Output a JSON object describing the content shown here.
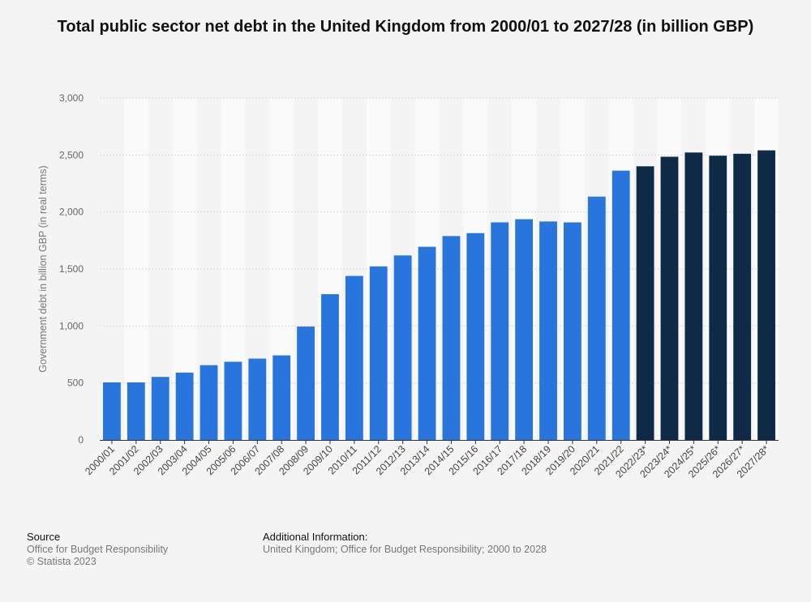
{
  "chart_data": {
    "type": "bar",
    "title": "Total public sector net debt in the United Kingdom from 2000/01 to 2027/28 (in billion GBP)",
    "ylabel": "Government debt in billion GBP (in real terms)",
    "xlabel": "",
    "ylim": [
      0,
      3000
    ],
    "yticks": [
      "0",
      "500",
      "1,000",
      "1,500",
      "2,000",
      "2,500",
      "3,000"
    ],
    "ytick_values": [
      0,
      500,
      1000,
      1500,
      2000,
      2500,
      3000
    ],
    "grid": true,
    "categories": [
      "2000/01",
      "2001/02",
      "2002/03",
      "2003/04",
      "2004/05",
      "2005/06",
      "2006/07",
      "2007/08",
      "2008/09",
      "2009/10",
      "2010/11",
      "2011/12",
      "2012/13",
      "2013/14",
      "2014/15",
      "2015/16",
      "2016/17",
      "2017/18",
      "2018/19",
      "2019/20",
      "2020/21",
      "2021/22",
      "2022/23*",
      "2023/24*",
      "2024/25*",
      "2025/26*",
      "2026/27*",
      "2027/28*"
    ],
    "values": [
      505,
      505,
      553,
      591,
      656,
      686,
      714,
      742,
      995,
      1279,
      1439,
      1523,
      1619,
      1695,
      1789,
      1815,
      1909,
      1937,
      1917,
      1909,
      2135,
      2363,
      2401,
      2485,
      2522,
      2494,
      2511,
      2541
    ],
    "colors": {
      "actual": "#2876dd",
      "forecast": "#0f2a46",
      "grid": "#d8d8d8",
      "band": "#fafafa",
      "axis": "#333333"
    },
    "forecast_start_index": 22
  },
  "footer": {
    "source_heading": "Source",
    "source_lines": [
      "Office for Budget Responsibility",
      "© Statista 2023"
    ],
    "info_heading": "Additional Information:",
    "info_text": "United Kingdom; Office for Budget Responsibility; 2000 to 2028"
  }
}
